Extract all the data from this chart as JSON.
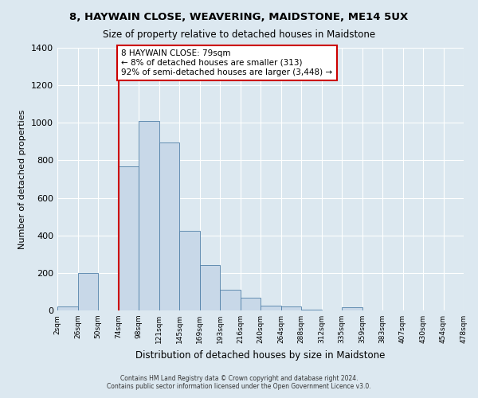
{
  "title": "8, HAYWAIN CLOSE, WEAVERING, MAIDSTONE, ME14 5UX",
  "subtitle": "Size of property relative to detached houses in Maidstone",
  "xlabel": "Distribution of detached houses by size in Maidstone",
  "ylabel": "Number of detached properties",
  "bin_labels": [
    "2sqm",
    "26sqm",
    "50sqm",
    "74sqm",
    "98sqm",
    "121sqm",
    "145sqm",
    "169sqm",
    "193sqm",
    "216sqm",
    "240sqm",
    "264sqm",
    "288sqm",
    "312sqm",
    "335sqm",
    "359sqm",
    "383sqm",
    "407sqm",
    "430sqm",
    "454sqm",
    "478sqm"
  ],
  "bar_values": [
    20,
    200,
    0,
    770,
    1010,
    895,
    425,
    240,
    110,
    68,
    25,
    20,
    5,
    0,
    15,
    0,
    0,
    0,
    0,
    0
  ],
  "bar_color": "#c8d8e8",
  "bar_edge_color": "#5080a8",
  "background_color": "#dce8f0",
  "vline_color": "#cc0000",
  "annotation_text": "8 HAYWAIN CLOSE: 79sqm\n← 8% of detached houses are smaller (313)\n92% of semi-detached houses are larger (3,448) →",
  "annotation_box_color": "#ffffff",
  "annotation_box_edge": "#cc0000",
  "ylim": [
    0,
    1400
  ],
  "yticks": [
    0,
    200,
    400,
    600,
    800,
    1000,
    1200,
    1400
  ],
  "footer1": "Contains HM Land Registry data © Crown copyright and database right 2024.",
  "footer2": "Contains public sector information licensed under the Open Government Licence v3.0."
}
